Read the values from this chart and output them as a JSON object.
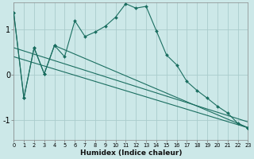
{
  "xlabel": "Humidex (Indice chaleur)",
  "bg_color": "#cce8e8",
  "grid_color": "#aacccc",
  "line_color": "#1a6e60",
  "x_ticks": [
    0,
    1,
    2,
    3,
    4,
    5,
    6,
    7,
    8,
    9,
    10,
    11,
    12,
    13,
    14,
    15,
    16,
    17,
    18,
    19,
    20,
    21,
    22,
    23
  ],
  "y_ticks": [
    -1,
    0,
    1
  ],
  "xlim": [
    0,
    23
  ],
  "ylim": [
    -1.45,
    1.6
  ],
  "main_x": [
    0,
    1,
    2,
    3,
    4,
    5,
    6,
    7,
    8,
    9,
    10,
    11,
    12,
    13,
    14,
    15,
    16,
    17,
    18,
    19,
    20,
    21,
    22,
    23
  ],
  "main_y": [
    1.38,
    -0.52,
    0.6,
    0.02,
    0.65,
    0.4,
    1.2,
    0.85,
    0.95,
    1.08,
    1.28,
    1.58,
    1.48,
    1.52,
    0.98,
    0.44,
    0.22,
    -0.15,
    -0.35,
    -0.52,
    -0.7,
    -0.85,
    -1.08,
    -1.18
  ],
  "seg_x": [
    0,
    1,
    2,
    3,
    4,
    23
  ],
  "seg_y": [
    1.38,
    -0.52,
    0.6,
    0.02,
    0.65,
    -1.18
  ],
  "trend1_x": [
    0,
    23
  ],
  "trend1_y": [
    0.6,
    -1.05
  ],
  "trend2_x": [
    0,
    23
  ],
  "trend2_y": [
    0.4,
    -1.18
  ]
}
